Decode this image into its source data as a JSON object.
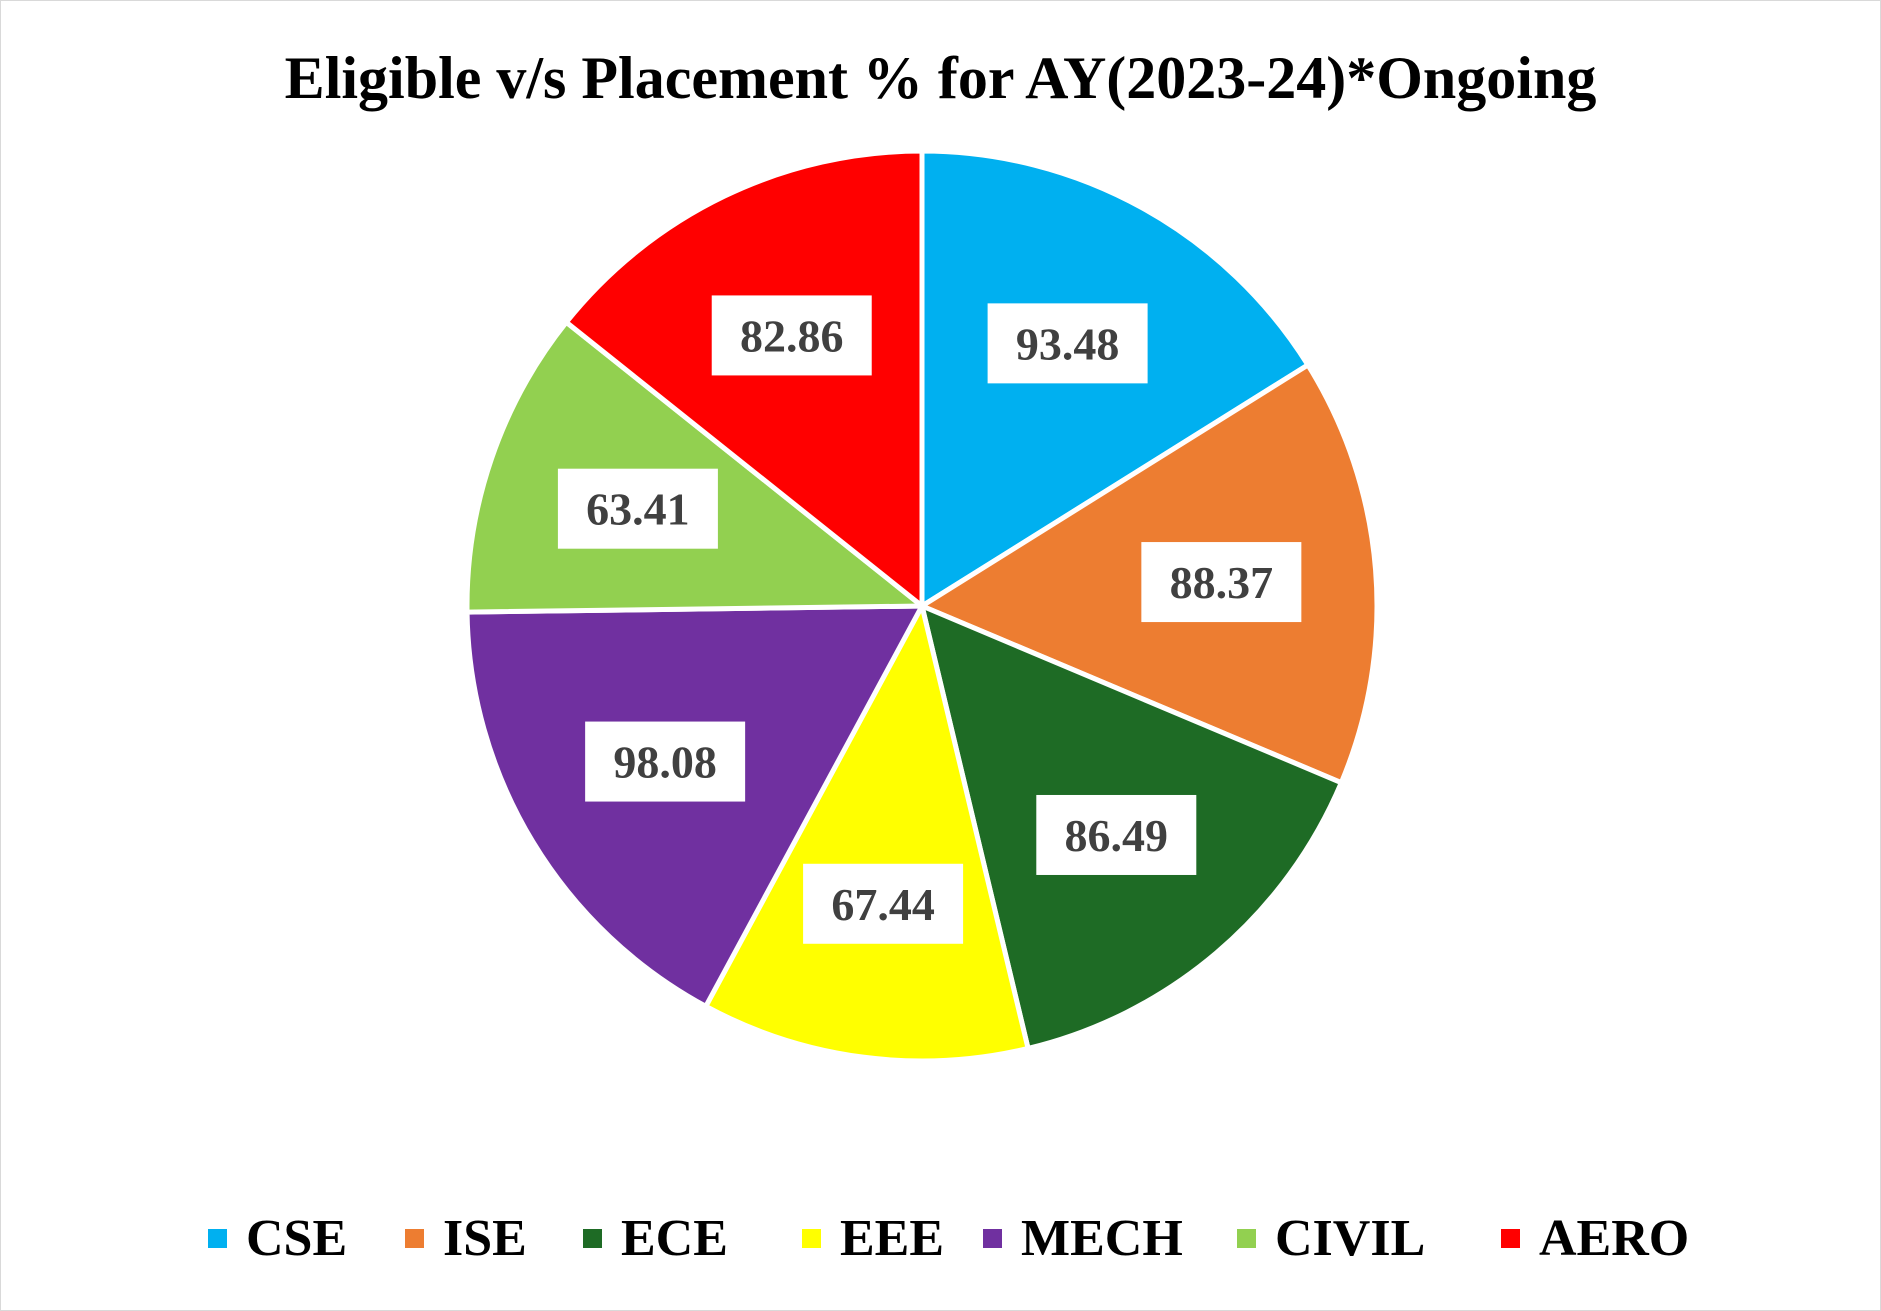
{
  "chart_data": {
    "type": "pie",
    "title": "Eligible v/s Placement % for AY(2023-24)*Ongoing",
    "categories": [
      "CSE",
      "ISE",
      "ECE",
      "EEE",
      "MECH",
      "CIVIL",
      "AERO"
    ],
    "values": [
      93.48,
      88.37,
      86.49,
      67.44,
      98.08,
      63.41,
      82.86
    ],
    "data_labels": [
      "93.48",
      "88.37",
      "86.49",
      "67.44",
      "98.08",
      "63.41",
      "82.86"
    ],
    "colors": [
      "#00B0F0",
      "#ED7D31",
      "#1E6B25",
      "#FFFF00",
      "#7030A0",
      "#92D050",
      "#FF0000"
    ],
    "legend_placement": "bottom",
    "start_angle": "12 o'clock",
    "direction": "clockwise"
  }
}
